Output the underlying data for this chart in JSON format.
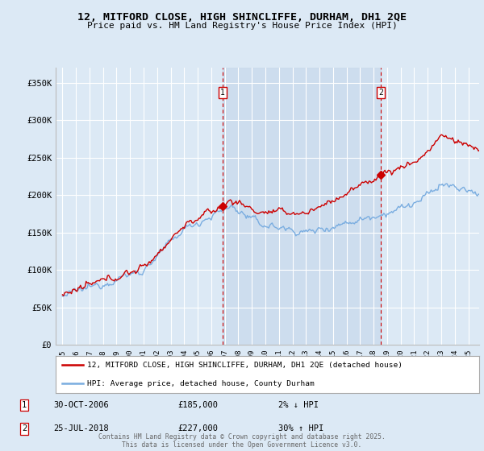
{
  "title": "12, MITFORD CLOSE, HIGH SHINCLIFFE, DURHAM, DH1 2QE",
  "subtitle": "Price paid vs. HM Land Registry's House Price Index (HPI)",
  "background_color": "#dce9f5",
  "sale1_date": "30-OCT-2006",
  "sale1_price": 185000,
  "sale1_year": 2006.83,
  "sale2_date": "25-JUL-2018",
  "sale2_price": 227000,
  "sale2_year": 2018.54,
  "red_line_color": "#cc0000",
  "blue_line_color": "#7aade0",
  "vline_color": "#cc0000",
  "shade_color": "#c8d8ec",
  "legend_label1": "12, MITFORD CLOSE, HIGH SHINCLIFFE, DURHAM, DH1 2QE (detached house)",
  "legend_label2": "HPI: Average price, detached house, County Durham",
  "footer": "Contains HM Land Registry data © Crown copyright and database right 2025.\nThis data is licensed under the Open Government Licence v3.0.",
  "ylim": [
    0,
    370000
  ],
  "yticks": [
    0,
    50000,
    100000,
    150000,
    200000,
    250000,
    300000,
    350000
  ],
  "ytick_labels": [
    "£0",
    "£50K",
    "£100K",
    "£150K",
    "£200K",
    "£250K",
    "£300K",
    "£350K"
  ],
  "xlim": [
    1994.5,
    2025.8
  ]
}
